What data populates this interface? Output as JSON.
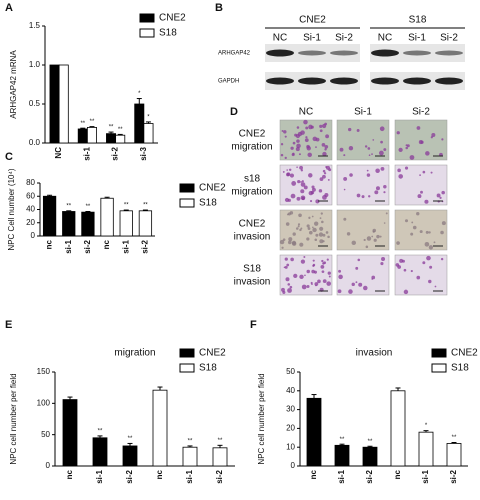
{
  "chart_data": [
    {
      "type": "bar",
      "panel": "A",
      "y_label": "ARHGAP42 mRNA",
      "categories": [
        "NC",
        "si-1",
        "si-2",
        "si-3"
      ],
      "series": [
        {
          "name": "CNE2",
          "color": "#000000",
          "values": [
            1,
            0.18,
            0.12,
            0.5
          ],
          "errors": [
            0,
            0.01,
            0.02,
            0.07
          ],
          "sig": [
            null,
            "**",
            "**",
            "*"
          ]
        },
        {
          "name": "S18",
          "color": "#ffffff",
          "values": [
            1,
            0.2,
            0.1,
            0.25
          ],
          "errors": [
            0,
            0.01,
            0.01,
            0.02
          ],
          "sig": [
            null,
            "**",
            "**",
            "*"
          ]
        }
      ],
      "ylim": [
        0,
        1.5
      ],
      "yticks": [
        {
          "value": 0,
          "label": "0.0"
        },
        0.5,
        {
          "value": 1,
          "label": "1.0"
        },
        1.5
      ]
    },
    {
      "type": "bar",
      "panel": "C",
      "y_label": "NPC Cell number (10⁴)",
      "categories": [
        "nc",
        "si-1",
        "si-2",
        "nc",
        "si-1",
        "si-2"
      ],
      "series": [
        {
          "name": "CNE2",
          "color": "#000000",
          "values": [
            60,
            37,
            36,
            null,
            null,
            null
          ],
          "errors": [
            1.5,
            1,
            1,
            null,
            null,
            null
          ],
          "sig": [
            null,
            "**",
            "**",
            null,
            null,
            null
          ]
        },
        {
          "name": "S18",
          "color": "#ffffff",
          "values": [
            null,
            null,
            null,
            57,
            38,
            38
          ],
          "errors": [
            null,
            null,
            null,
            1.5,
            1.2,
            1.2
          ],
          "sig": [
            null,
            null,
            null,
            null,
            "**",
            "**"
          ]
        }
      ],
      "ylim": [
        0,
        80
      ],
      "yticks": [
        0,
        20,
        40,
        60,
        80
      ]
    },
    {
      "type": "bar",
      "panel": "E",
      "title": "migration",
      "y_label": "NPC cell number per field",
      "categories": [
        "nc",
        "si-1",
        "si-2",
        "nc",
        "si-1",
        "si-2"
      ],
      "series": [
        {
          "name": "CNE2",
          "color": "#000000",
          "values": [
            106,
            45,
            32,
            null,
            null,
            null
          ],
          "errors": [
            4,
            3,
            4,
            null,
            null,
            null
          ],
          "sig": [
            null,
            "**",
            "**",
            null,
            null,
            null
          ]
        },
        {
          "name": "S18",
          "color": "#ffffff",
          "values": [
            null,
            null,
            null,
            121,
            30,
            29
          ],
          "errors": [
            null,
            null,
            null,
            5,
            2,
            4
          ],
          "sig": [
            null,
            null,
            null,
            null,
            "**",
            "**"
          ]
        }
      ],
      "ylim": [
        0,
        150
      ],
      "yticks": [
        0,
        50,
        100,
        150
      ]
    },
    {
      "type": "bar",
      "panel": "F",
      "title": "invasion",
      "y_label": "NPC cell number per field",
      "categories": [
        "nc",
        "si-1",
        "si-2",
        "nc",
        "si-1",
        "si-2"
      ],
      "series": [
        {
          "name": "CNE2",
          "color": "#000000",
          "values": [
            36,
            11,
            10,
            null,
            null,
            null
          ],
          "errors": [
            2,
            0.6,
            0.5,
            null,
            null,
            null
          ],
          "sig": [
            null,
            "**",
            "**",
            null,
            null,
            null
          ]
        },
        {
          "name": "S18",
          "color": "#ffffff",
          "values": [
            null,
            null,
            null,
            40,
            18,
            12
          ],
          "errors": [
            null,
            null,
            null,
            1.5,
            0.8,
            0.5
          ],
          "sig": [
            null,
            null,
            null,
            null,
            "*",
            "**"
          ]
        }
      ],
      "ylim": [
        0,
        50
      ],
      "yticks": [
        0,
        10,
        20,
        30,
        40,
        50
      ]
    }
  ],
  "blot": {
    "panel": "B",
    "groups": [
      {
        "name": "CNE2",
        "lanes": [
          "NC",
          "Si-1",
          "Si-2"
        ]
      },
      {
        "name": "S18",
        "lanes": [
          "NC",
          "Si-1",
          "Si-2"
        ]
      }
    ],
    "rows": [
      "ARHGAP42",
      "GAPDH"
    ]
  },
  "micrographs": {
    "panel": "D",
    "columns": [
      "NC",
      "Si-1",
      "Si-2"
    ],
    "rows": [
      [
        "CNE2",
        "migration"
      ],
      [
        "s18",
        "migration"
      ],
      [
        "CNE2",
        "invasion"
      ],
      [
        "S18",
        "invasion"
      ]
    ]
  }
}
